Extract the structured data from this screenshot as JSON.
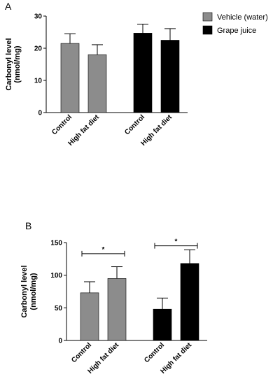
{
  "figure": {
    "panel_a_label": "A",
    "panel_b_label": "B"
  },
  "legend": {
    "items": [
      {
        "label": "Vehicle (water)",
        "color": "#8c8c8c"
      },
      {
        "label": "Grape juice",
        "color": "#000000"
      }
    ]
  },
  "chart_data": [
    {
      "panel": "A",
      "type": "bar",
      "ylabel_line1": "Carbonyl level",
      "ylabel_line2": "(nmol/mg)",
      "ylim": [
        0,
        30
      ],
      "yticks": [
        0,
        10,
        20,
        30
      ],
      "grid": false,
      "categories": [
        "Control",
        "High fat diet",
        "Control",
        "High fat diet"
      ],
      "values": [
        21.5,
        18.0,
        24.7,
        22.5
      ],
      "errors": [
        3.0,
        3.1,
        2.8,
        3.6
      ],
      "bar_groups": [
        "Vehicle (water)",
        "Vehicle (water)",
        "Grape juice",
        "Grape juice"
      ],
      "colors": [
        "#8c8c8c",
        "#8c8c8c",
        "#000000",
        "#000000"
      ],
      "legend": "top-right",
      "annotations": []
    },
    {
      "panel": "B",
      "type": "bar",
      "ylabel_line1": "Carbonyl level",
      "ylabel_line2": "(nmol/mg)",
      "ylim": [
        0,
        150
      ],
      "yticks": [
        0,
        50,
        100,
        150
      ],
      "grid": false,
      "categories": [
        "Control",
        "High fat diet",
        "Control",
        "High fat diet"
      ],
      "values": [
        73,
        95,
        48,
        118
      ],
      "errors": [
        17,
        18,
        17,
        21
      ],
      "bar_groups": [
        "Vehicle (water)",
        "Vehicle (water)",
        "Grape juice",
        "Grape juice"
      ],
      "colors": [
        "#8c8c8c",
        "#8c8c8c",
        "#000000",
        "#000000"
      ],
      "annotations": [
        {
          "text": "*",
          "from": 0,
          "to": 1,
          "y": 133
        },
        {
          "text": "*",
          "from": 2,
          "to": 3,
          "y": 145
        }
      ]
    }
  ]
}
